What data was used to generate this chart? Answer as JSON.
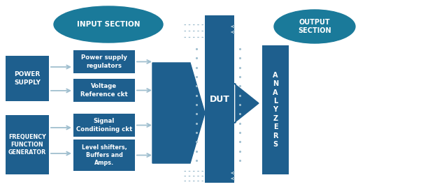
{
  "bg_color": "#ffffff",
  "block_color": "#1e5f8e",
  "ellipse_color": "#1a7a9a",
  "arrow_color": "#a0bfcf",
  "input_section_label": "INPUT SECTION",
  "output_section_label": "OUTPUT\nSECTION",
  "power_supply_label": "POWER\nSUPPLY",
  "freq_gen_label": "FREQUENCY\nFUNCTION\nGENERATOR",
  "box1_label": "Power supply\nregulators",
  "box2_label": "Voltage\nReference ckt",
  "box3_label": "Signal\nConditioning ckt",
  "box4_label": "Level shifters,\nBuffers and\nAmps.",
  "dut_label": "DUT",
  "analyzers_label": "A\nN\nA\nL\nY\nZ\nE\nR\nS",
  "figw": 6.05,
  "figh": 2.81,
  "dpi": 100
}
